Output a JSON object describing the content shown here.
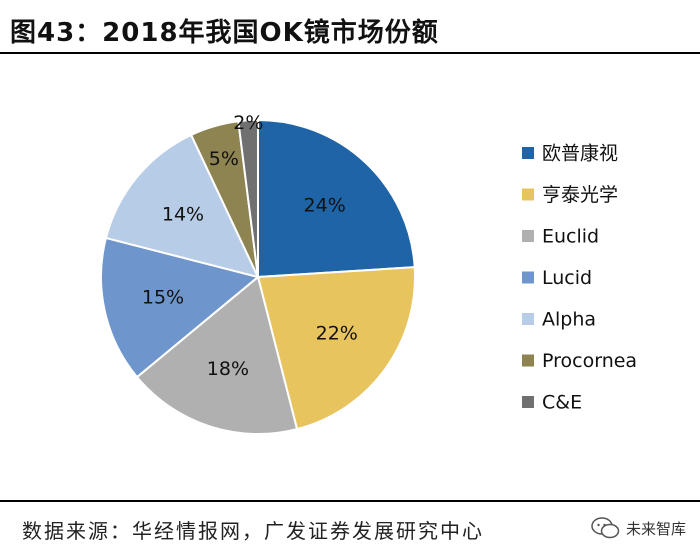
{
  "header": {
    "title": "图43：2018年我国OK镜市场份额"
  },
  "footer": {
    "source": "数据来源：华经情报网，广发证券发展研究中心",
    "watermark": "未来智库"
  },
  "colors": {
    "slices": [
      "#1f64a6",
      "#e8c45f",
      "#b0b0b0",
      "#6f96cc",
      "#b7cce7",
      "#8e8451",
      "#707070"
    ]
  },
  "icons": {
    "watermark": "wechat-icon"
  },
  "chart_data": {
    "type": "pie",
    "title": "2018年我国OK镜市场份额",
    "labels": [
      "欧普康视",
      "亨泰光学",
      "Euclid",
      "Lucid",
      "Alpha",
      "Procornea",
      "C&E"
    ],
    "values": [
      24,
      22,
      18,
      15,
      14,
      5,
      2
    ],
    "value_labels": [
      "24%",
      "22%",
      "18%",
      "15%",
      "14%",
      "5%",
      "2%"
    ],
    "legend_position": "right",
    "start_angle_deg": 0,
    "direction": "clockwise"
  }
}
